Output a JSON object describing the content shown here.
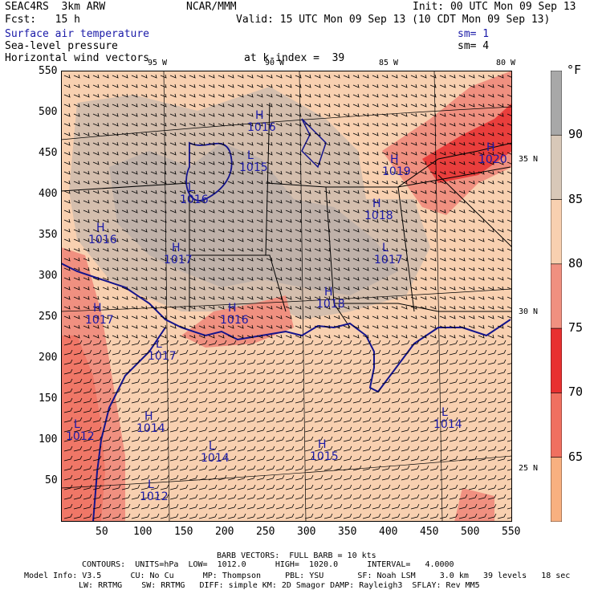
{
  "header": {
    "model": "SEAC4RS  3km ARW",
    "org": "NCAR/MMM",
    "init": "Init: 00 UTC Mon 09 Sep 13",
    "fcst": "Fcst:   15 h",
    "valid": "Valid: 15 UTC Mon 09 Sep 13 (10 CDT Mon 09 Sep 13)",
    "line1": "Surface air temperature",
    "line2": "Sea-level pressure",
    "line3": "Horizontal wind vectors",
    "sm1": "sm= 1",
    "sm2": "sm= 4",
    "k_index": "at k-index =  39"
  },
  "map": {
    "x_ticks": [
      "50",
      "100",
      "150",
      "200",
      "250",
      "300",
      "350",
      "400",
      "450",
      "500",
      "550"
    ],
    "y_ticks": [
      "550",
      "500",
      "450",
      "400",
      "350",
      "300",
      "250",
      "200",
      "150",
      "100",
      "50"
    ],
    "lon_labels": [
      "95 W",
      "90 W",
      "85 W",
      "80 W"
    ],
    "lat_labels": [
      "35 N",
      "30 N",
      "25 N"
    ],
    "pressure_centers": [
      {
        "type": "H",
        "value": "1016"
      },
      {
        "type": "L",
        "value": "1015"
      },
      {
        "type": "L",
        "value": "1016"
      },
      {
        "type": "H",
        "value": "1016"
      },
      {
        "type": "H",
        "value": "1017"
      },
      {
        "type": "H",
        "value": "1019"
      },
      {
        "type": "H",
        "value": "1018"
      },
      {
        "type": "L",
        "value": "1017"
      },
      {
        "type": "H",
        "value": "1020"
      },
      {
        "type": "H",
        "value": "1016"
      },
      {
        "type": "H",
        "value": "1017"
      },
      {
        "type": "H",
        "value": "1018"
      },
      {
        "type": "L",
        "value": "1017"
      },
      {
        "type": "H",
        "value": "1014"
      },
      {
        "type": "L",
        "value": "1014"
      },
      {
        "type": "H",
        "value": "1015"
      },
      {
        "type": "L",
        "value": "1014"
      },
      {
        "type": "L",
        "value": "1012"
      },
      {
        "type": "L",
        "value": "1012"
      }
    ]
  },
  "colorbar": {
    "unit": "°F",
    "labels": [
      "90",
      "85",
      "80",
      "75",
      "70",
      "65"
    ],
    "colors": [
      "#a8a8a8",
      "#d8c8b8",
      "#f8d0b0",
      "#f09080",
      "#e83030",
      "#f07060",
      "#f8b080"
    ]
  },
  "footer": {
    "barb": "BARB VECTORS:  FULL BARB = 10 kts",
    "contours": "CONTOURS:  UNITS=hPa  LOW=  1012.0      HIGH=  1020.0      INTERVAL=   4.0000",
    "model_info": "Model Info: V3.5      CU: No Cu      MP: Thompson     PBL: YSU       SF: Noah LSM     3.0 km   39 levels   18 sec",
    "model_info2": "LW: RRTMG    SW: RRTMG   DIFF: simple KM: 2D Smagor DAMP: Rayleigh3  SFLAY: Rev MM5"
  }
}
